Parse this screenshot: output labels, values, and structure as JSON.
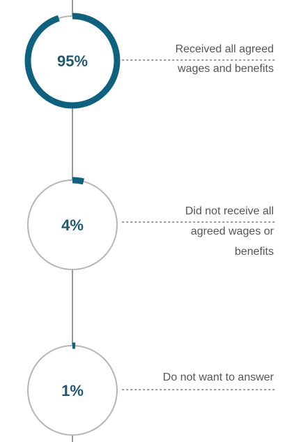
{
  "chart_data": {
    "type": "pie",
    "colors": {
      "accent": "#0f6180",
      "track": "#b5b5b5",
      "connector": "#9a9a9a",
      "value_text": "#1d5a72",
      "label_text": "#555555"
    },
    "items": [
      {
        "value": 95,
        "value_label": "95%",
        "label_lines": [
          "Received all agreed",
          "wages and benefits"
        ]
      },
      {
        "value": 4,
        "value_label": "4%",
        "label_lines": [
          "Did not receive all",
          "agreed wages or",
          "benefits"
        ]
      },
      {
        "value": 1,
        "value_label": "1%",
        "label_lines": [
          "Do not want to answer"
        ]
      }
    ]
  }
}
